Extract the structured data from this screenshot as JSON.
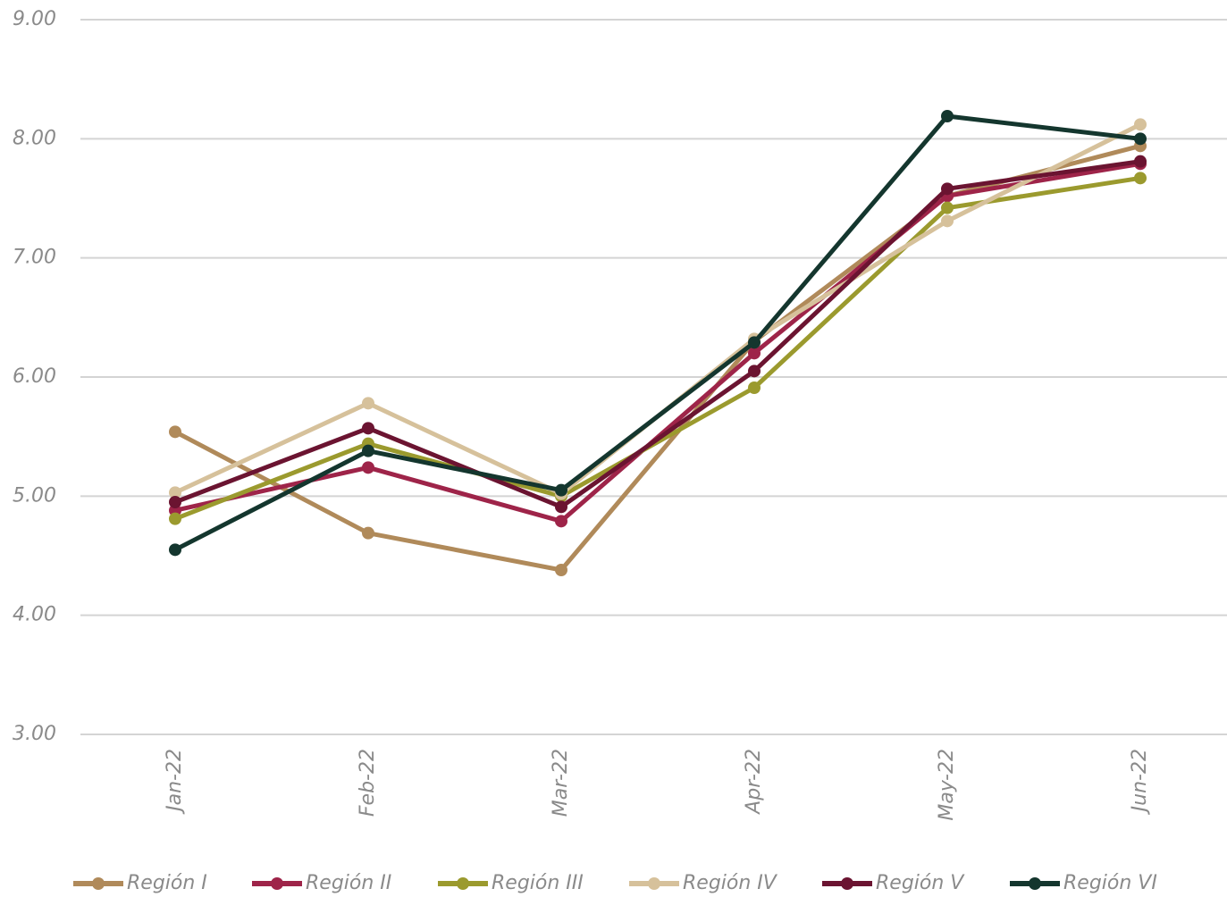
{
  "chart_data": {
    "type": "line",
    "categories": [
      "Jan-22",
      "Feb-22",
      "Mar-22",
      "Apr-22",
      "May-22",
      "Jun-22"
    ],
    "series": [
      {
        "name": "Región I",
        "color": "#b08a5a",
        "values": [
          5.54,
          4.69,
          4.38,
          6.3,
          7.52,
          7.94
        ]
      },
      {
        "name": "Región II",
        "color": "#9e2449",
        "values": [
          4.88,
          5.24,
          4.79,
          6.2,
          7.52,
          7.79
        ]
      },
      {
        "name": "Región III",
        "color": "#9b9a2e",
        "values": [
          4.81,
          5.44,
          5.0,
          5.91,
          7.42,
          7.67
        ]
      },
      {
        "name": "Región IV",
        "color": "#d6c19b",
        "values": [
          5.03,
          5.78,
          5.02,
          6.32,
          7.31,
          8.12
        ]
      },
      {
        "name": "Región V",
        "color": "#6b1431",
        "values": [
          4.95,
          5.57,
          4.91,
          6.05,
          7.58,
          7.81
        ]
      },
      {
        "name": "Región VI",
        "color": "#14362e",
        "values": [
          4.55,
          5.38,
          5.05,
          6.29,
          8.19,
          8.0
        ]
      }
    ],
    "ylim": [
      3,
      9
    ],
    "yticks": [
      {
        "value": 3,
        "label": "3.00"
      },
      {
        "value": 4,
        "label": "4.00"
      },
      {
        "value": 5,
        "label": "5.00"
      },
      {
        "value": 6,
        "label": "6.00"
      },
      {
        "value": 7,
        "label": "7.00"
      },
      {
        "value": 8,
        "label": "8.00"
      },
      {
        "value": 9,
        "label": "9.00"
      }
    ],
    "grid": true,
    "legend": "bottom"
  }
}
